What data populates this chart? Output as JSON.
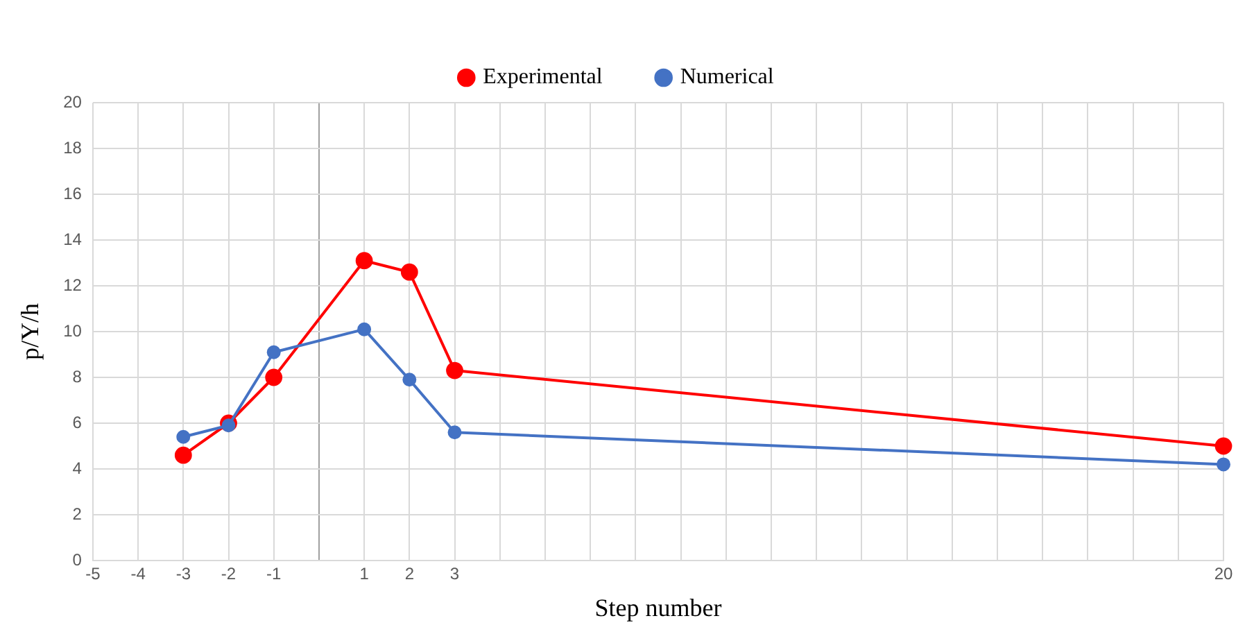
{
  "chart_data": {
    "type": "line",
    "xlabel": "Step number",
    "ylabel": "p/Υ/h",
    "xlim": [
      -5,
      20
    ],
    "xticks": [
      -5,
      -4,
      -3,
      -2,
      -1,
      {
        "value": 0,
        "label": null
      },
      1,
      2,
      3,
      {
        "value": 4,
        "label": null
      },
      {
        "value": 5,
        "label": null
      },
      {
        "value": 6,
        "label": null
      },
      {
        "value": 7,
        "label": null
      },
      {
        "value": 8,
        "label": null
      },
      {
        "value": 9,
        "label": null
      },
      {
        "value": 10,
        "label": null
      },
      {
        "value": 11,
        "label": null
      },
      {
        "value": 12,
        "label": null
      },
      {
        "value": 13,
        "label": null
      },
      {
        "value": 14,
        "label": null
      },
      {
        "value": 15,
        "label": null
      },
      {
        "value": 16,
        "label": null
      },
      {
        "value": 17,
        "label": null
      },
      {
        "value": 18,
        "label": null
      },
      {
        "value": 19,
        "label": null
      },
      20
    ],
    "ylim": [
      0,
      20
    ],
    "yticks": [
      0,
      2,
      4,
      6,
      8,
      10,
      12,
      14,
      16,
      18,
      20
    ],
    "grid": true,
    "legend": "top",
    "marker": "circle",
    "line_style": "solid",
    "series": [
      {
        "name": "Experimental",
        "color": "#ff0000",
        "x": [
          -3,
          -2,
          -1,
          1,
          2,
          3,
          20
        ],
        "values": [
          4.6,
          6.0,
          8.0,
          13.1,
          12.6,
          8.3,
          5.0
        ]
      },
      {
        "name": "Numerical",
        "color": "#4472c4",
        "x": [
          -3,
          -2,
          -1,
          1,
          2,
          3,
          20
        ],
        "values": [
          5.4,
          5.9,
          9.1,
          10.1,
          7.9,
          5.6,
          4.2
        ]
      }
    ]
  }
}
